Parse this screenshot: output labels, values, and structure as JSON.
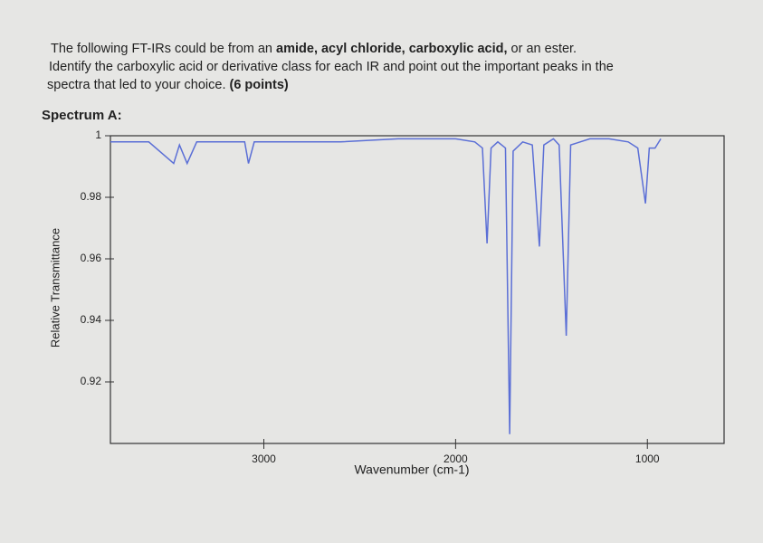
{
  "question": {
    "line1": "The following FT-IRs could be from an",
    "line1_bold": "amide, acyl chloride, carboxylic acid,",
    "line1_end": "or an ester.",
    "line2": "Identify the carboxylic acid or derivative class for each IR and point out the important peaks in the",
    "line3": "spectra that led to your choice.",
    "line3_bold": "(6 points)"
  },
  "spectrum_label": "Spectrum A:",
  "chart_data": {
    "type": "line",
    "xlabel": "Wavenumber (cm-1)",
    "ylabel": "Relative Transmittance",
    "xlim": [
      3800,
      600
    ],
    "ylim": [
      0.9,
      1.0
    ],
    "xticks": [
      3000,
      2000,
      1000
    ],
    "yticks": [
      1,
      0.98,
      0.96,
      0.94,
      0.92
    ],
    "x": [
      3800,
      3600,
      3470,
      3440,
      3400,
      3350,
      3100,
      3080,
      3050,
      2600,
      2300,
      2000,
      1900,
      1860,
      1836,
      1815,
      1780,
      1740,
      1718,
      1700,
      1650,
      1600,
      1563,
      1540,
      1490,
      1460,
      1423,
      1400,
      1300,
      1200,
      1100,
      1050,
      1010,
      990,
      960,
      930
    ],
    "series": [
      {
        "color": "#5b6fd6",
        "values": [
          0.998,
          0.998,
          0.991,
          0.997,
          0.991,
          0.998,
          0.998,
          0.991,
          0.998,
          0.998,
          0.999,
          0.999,
          0.998,
          0.996,
          0.965,
          0.996,
          0.998,
          0.996,
          0.903,
          0.995,
          0.998,
          0.997,
          0.964,
          0.997,
          0.999,
          0.997,
          0.935,
          0.997,
          0.999,
          0.999,
          0.998,
          0.996,
          0.978,
          0.996,
          0.996,
          0.999
        ]
      }
    ]
  }
}
